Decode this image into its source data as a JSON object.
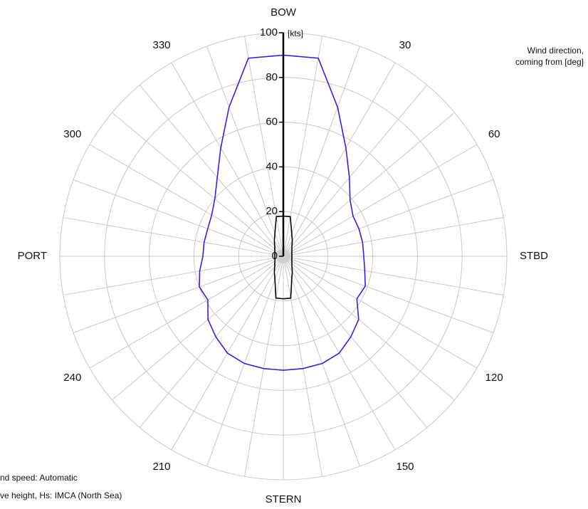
{
  "chart_data": {
    "type": "polar",
    "theta": [
      0,
      10,
      20,
      30,
      40,
      50,
      60,
      70,
      80,
      90,
      100,
      110,
      120,
      130,
      140,
      150,
      160,
      170,
      180,
      190,
      200,
      210,
      220,
      230,
      240,
      250,
      260,
      270,
      280,
      290,
      300,
      310,
      320,
      330,
      340,
      350
    ],
    "series": [
      {
        "color": "#3a1ee6",
        "values": [
          90,
          90,
          71,
          56,
          46,
          39,
          36,
          36,
          36,
          36,
          37,
          39,
          38,
          44,
          47,
          50,
          51,
          51,
          51,
          51,
          51,
          50,
          47,
          44,
          39,
          40,
          38,
          36,
          36,
          36,
          37,
          40,
          46,
          56,
          71,
          90
        ]
      },
      {
        "color": "#000000",
        "values": [
          18,
          18,
          11,
          8,
          6,
          5,
          4.4,
          4,
          3.9,
          3.8,
          3.9,
          4,
          4.4,
          5,
          6,
          8,
          11,
          19,
          19,
          19,
          11,
          8,
          6,
          5,
          4.4,
          4,
          3.9,
          3.8,
          3.9,
          4,
          4.4,
          5,
          6,
          8,
          11,
          18
        ]
      }
    ],
    "rlim": [
      0,
      100
    ],
    "rticks": [
      0,
      20,
      40,
      60,
      80,
      100
    ],
    "r_unit": "[kts]",
    "thetaticks": [
      {
        "value": 0,
        "label": "BOW"
      },
      30,
      60,
      {
        "value": 90,
        "label": "STBD"
      },
      120,
      150,
      {
        "value": 180,
        "label": "STERN"
      },
      210,
      240,
      {
        "value": 270,
        "label": "PORT"
      },
      300,
      330
    ],
    "annotation_lines": [
      "Wind direction,",
      "coming from [deg]"
    ],
    "notes": [
      "nd speed: Automatic",
      "ve height, Hs: IMCA (North Sea)"
    ],
    "grid": true
  }
}
